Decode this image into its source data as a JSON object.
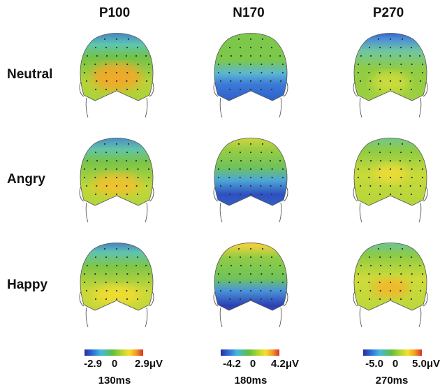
{
  "columns": [
    {
      "title": "P100",
      "scale": {
        "min": "-2.9",
        "mid": "0",
        "max": "2.9μV"
      },
      "time": "130ms"
    },
    {
      "title": "N170",
      "scale": {
        "min": "-4.2",
        "mid": "0",
        "max": "4.2μV"
      },
      "time": "180ms"
    },
    {
      "title": "P270",
      "scale": {
        "min": "-5.0",
        "mid": "0",
        "max": "5.0μV"
      },
      "time": "270ms"
    }
  ],
  "rows": [
    {
      "label": "Neutral"
    },
    {
      "label": "Angry"
    },
    {
      "label": "Happy"
    }
  ],
  "colors": {
    "negative": "#2a3fb8",
    "neutral": "#5fbf3f",
    "positive": "#d73027",
    "electrode": "#333333"
  }
}
